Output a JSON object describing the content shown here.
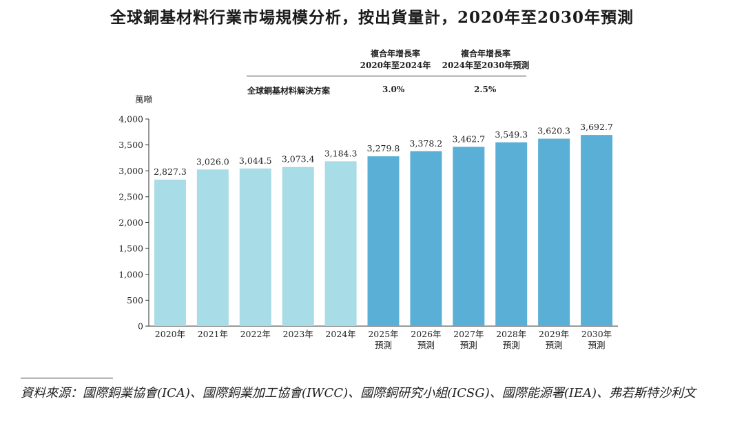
{
  "title": "全球銅基材料行業市場規模分析，按出貨量計，2020年至2030年預測",
  "cagr_table": {
    "col1_line1": "複合年增長率",
    "col1_line2": "2020年至2024年",
    "col2_line1": "複合年增長率",
    "col2_line2": "2024年至2030年預測",
    "row_label": "全球銅基材料解決方案",
    "value1": "3.0%",
    "value2": "2.5%"
  },
  "colors": {
    "historical": "#a8dce6",
    "forecast": "#5aafd6",
    "axis": "#333333"
  },
  "chart_data": {
    "type": "bar",
    "title": "全球銅基材料行業市場規模分析，按出貨量計，2020年至2030年預測",
    "ylabel": "萬噸",
    "xlabel": "",
    "ylim": [
      0,
      4000
    ],
    "yticks": [
      0,
      500,
      1000,
      1500,
      2000,
      2500,
      3000,
      3500,
      4000
    ],
    "ytick_labels": [
      "0",
      "500",
      "1,000",
      "1,500",
      "2,000",
      "2,500",
      "3,000",
      "3,500",
      "4,000"
    ],
    "categories": [
      [
        "2020年"
      ],
      [
        "2021年"
      ],
      [
        "2022年"
      ],
      [
        "2023年"
      ],
      [
        "2024年"
      ],
      [
        "2025年",
        "預測"
      ],
      [
        "2026年",
        "預測"
      ],
      [
        "2027年",
        "預測"
      ],
      [
        "2028年",
        "預測"
      ],
      [
        "2029年",
        "預測"
      ],
      [
        "2030年",
        "預測"
      ]
    ],
    "values": [
      2827.3,
      3026.0,
      3044.5,
      3073.4,
      3184.3,
      3279.8,
      3378.2,
      3462.7,
      3549.3,
      3620.3,
      3692.7
    ],
    "value_labels": [
      "2,827.3",
      "3,026.0",
      "3,044.5",
      "3,073.4",
      "3,184.3",
      "3,279.8",
      "3,378.2",
      "3,462.7",
      "3,549.3",
      "3,620.3",
      "3,692.7"
    ],
    "forecast": [
      false,
      false,
      false,
      false,
      false,
      true,
      true,
      true,
      true,
      true,
      true
    ],
    "grid": false
  },
  "source": "資料來源：國際銅業協會(ICA)、國際銅業加工協會(IWCC)、國際銅研究小組(ICSG)、國際能源署(IEA)、弗若斯特沙利文"
}
